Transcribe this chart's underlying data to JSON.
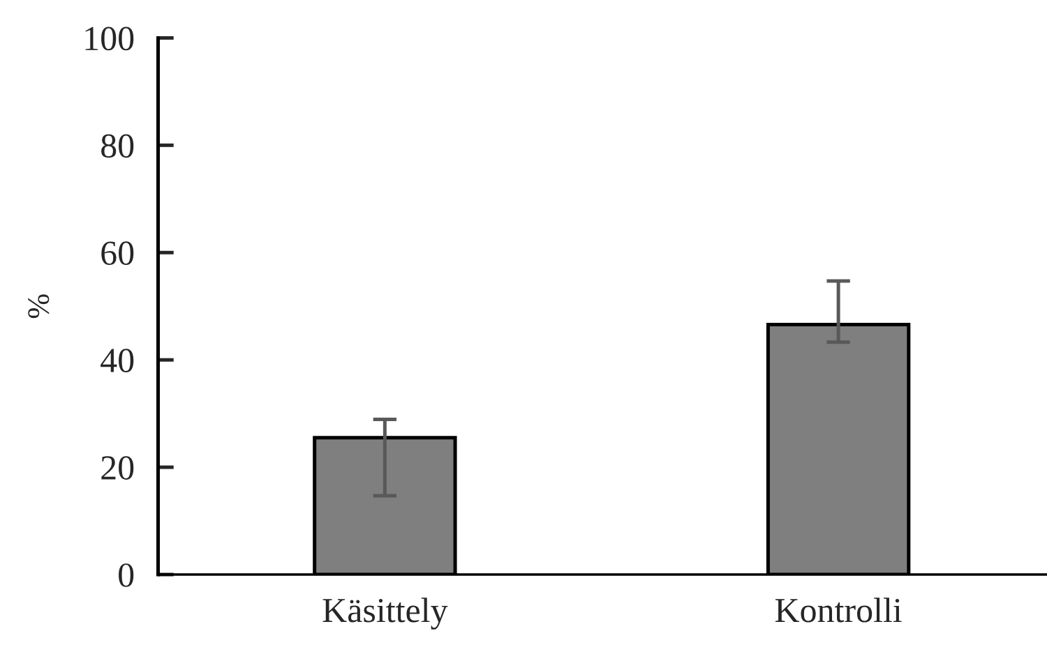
{
  "chart_data": {
    "type": "bar",
    "ylabel": "%",
    "categories": [
      "Käsittely",
      "Kontrolli"
    ],
    "values": [
      25.5,
      46.6
    ],
    "errors": [
      [
        14.7,
        28.9
      ],
      [
        43.3,
        54.7
      ]
    ],
    "color": "#7f7f7f",
    "ylim": [
      0,
      100
    ],
    "yticks": [
      0,
      20,
      40,
      60,
      80,
      100
    ],
    "grid": false,
    "legend": false
  }
}
